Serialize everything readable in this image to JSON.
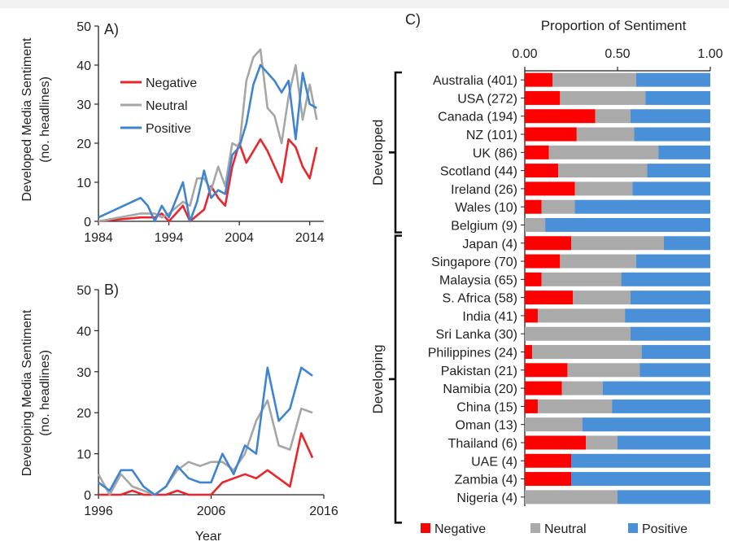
{
  "chart_data": [
    {
      "panel_label": "A)",
      "type": "line",
      "ylabel": [
        "Developed Media Sentiment",
        "(no. headlines)"
      ],
      "xlabel": "",
      "xlim": [
        1984,
        2016
      ],
      "ylim": [
        0,
        50
      ],
      "x_ticks": [
        1984,
        1994,
        2004,
        2014
      ],
      "y_ticks": [
        0,
        10,
        20,
        30,
        40,
        50
      ],
      "legend": "top-left",
      "series": [
        {
          "name": "Negative",
          "color": "#e8262b",
          "points": [
            [
              1984,
              0
            ],
            [
              1990,
              1
            ],
            [
              1992,
              1
            ],
            [
              1993,
              2
            ],
            [
              1994,
              0
            ],
            [
              1996,
              4
            ],
            [
              1997,
              0
            ],
            [
              1999,
              3
            ],
            [
              2000,
              9
            ],
            [
              2001,
              6
            ],
            [
              2002,
              4
            ],
            [
              2003,
              14
            ],
            [
              2004,
              20
            ],
            [
              2005,
              15
            ],
            [
              2007,
              21
            ],
            [
              2008,
              18
            ],
            [
              2010,
              10
            ],
            [
              2011,
              21
            ],
            [
              2012,
              19
            ],
            [
              2013,
              14
            ],
            [
              2014,
              11
            ],
            [
              2015,
              19
            ]
          ]
        },
        {
          "name": "Neutral",
          "color": "#a6a6a6",
          "points": [
            [
              1984,
              0
            ],
            [
              1990,
              2
            ],
            [
              1992,
              2
            ],
            [
              1993,
              1
            ],
            [
              1994,
              2
            ],
            [
              1996,
              5
            ],
            [
              1997,
              4
            ],
            [
              1998,
              11
            ],
            [
              1999,
              11
            ],
            [
              2000,
              8
            ],
            [
              2001,
              14
            ],
            [
              2002,
              9
            ],
            [
              2003,
              20
            ],
            [
              2004,
              19
            ],
            [
              2005,
              36
            ],
            [
              2006,
              42
            ],
            [
              2007,
              44
            ],
            [
              2008,
              29
            ],
            [
              2009,
              27
            ],
            [
              2010,
              20
            ],
            [
              2011,
              32
            ],
            [
              2012,
              40
            ],
            [
              2013,
              26
            ],
            [
              2014,
              35
            ],
            [
              2015,
              26
            ]
          ]
        },
        {
          "name": "Positive",
          "color": "#3f84d1",
          "points": [
            [
              1984,
              1
            ],
            [
              1990,
              6
            ],
            [
              1991,
              4
            ],
            [
              1992,
              0
            ],
            [
              1993,
              4
            ],
            [
              1994,
              1
            ],
            [
              1996,
              10
            ],
            [
              1997,
              0
            ],
            [
              1998,
              5
            ],
            [
              1999,
              13
            ],
            [
              2000,
              6
            ],
            [
              2001,
              8
            ],
            [
              2002,
              7
            ],
            [
              2003,
              17
            ],
            [
              2004,
              19
            ],
            [
              2005,
              25
            ],
            [
              2006,
              35
            ],
            [
              2007,
              40
            ],
            [
              2008,
              38
            ],
            [
              2009,
              36
            ],
            [
              2010,
              33
            ],
            [
              2011,
              36
            ],
            [
              2012,
              21
            ],
            [
              2013,
              38
            ],
            [
              2014,
              30
            ],
            [
              2015,
              29
            ]
          ]
        }
      ]
    },
    {
      "panel_label": "B)",
      "type": "line",
      "ylabel": [
        "Developing Media Sentiment",
        "(no. headlines)"
      ],
      "xlabel": "Year",
      "xlim": [
        1996,
        2016
      ],
      "ylim": [
        0,
        50
      ],
      "x_ticks": [
        1996,
        2006,
        2016
      ],
      "y_ticks": [
        0,
        10,
        20,
        30,
        40,
        50
      ],
      "series": [
        {
          "name": "Negative",
          "color": "#e8262b",
          "points": [
            [
              1996,
              0
            ],
            [
              1997,
              0
            ],
            [
              1998,
              0
            ],
            [
              1999,
              1
            ],
            [
              2000,
              0
            ],
            [
              2001,
              0
            ],
            [
              2002,
              0
            ],
            [
              2003,
              1
            ],
            [
              2004,
              0
            ],
            [
              2005,
              0
            ],
            [
              2006,
              0
            ],
            [
              2007,
              3
            ],
            [
              2008,
              4
            ],
            [
              2009,
              5
            ],
            [
              2010,
              4
            ],
            [
              2011,
              6
            ],
            [
              2012,
              4
            ],
            [
              2013,
              2
            ],
            [
              2014,
              15
            ],
            [
              2015,
              9
            ]
          ]
        },
        {
          "name": "Neutral",
          "color": "#a6a6a6",
          "points": [
            [
              1996,
              5
            ],
            [
              1997,
              0
            ],
            [
              1998,
              5
            ],
            [
              1999,
              2
            ],
            [
              2000,
              1
            ],
            [
              2001,
              0
            ],
            [
              2002,
              2
            ],
            [
              2003,
              6
            ],
            [
              2004,
              8
            ],
            [
              2005,
              7
            ],
            [
              2006,
              8
            ],
            [
              2007,
              8
            ],
            [
              2008,
              6
            ],
            [
              2009,
              10
            ],
            [
              2010,
              18
            ],
            [
              2011,
              23
            ],
            [
              2012,
              12
            ],
            [
              2013,
              11
            ],
            [
              2014,
              21
            ],
            [
              2015,
              20
            ]
          ]
        },
        {
          "name": "Positive",
          "color": "#3f84d1",
          "points": [
            [
              1996,
              3
            ],
            [
              1997,
              1
            ],
            [
              1998,
              6
            ],
            [
              1999,
              6
            ],
            [
              2000,
              2
            ],
            [
              2001,
              0
            ],
            [
              2002,
              2
            ],
            [
              2003,
              7
            ],
            [
              2004,
              4
            ],
            [
              2005,
              3
            ],
            [
              2006,
              3
            ],
            [
              2007,
              10
            ],
            [
              2008,
              5
            ],
            [
              2009,
              12
            ],
            [
              2010,
              10
            ],
            [
              2011,
              31
            ],
            [
              2012,
              18
            ],
            [
              2013,
              21
            ],
            [
              2014,
              31
            ],
            [
              2015,
              29
            ]
          ]
        }
      ]
    },
    {
      "panel_label": "C)",
      "type": "bar",
      "orientation": "horizontal",
      "stacked": true,
      "title": "Proportion of Sentiment",
      "xlim": [
        0,
        1
      ],
      "x_ticks": [
        "0.00",
        "0.50",
        "1.00"
      ],
      "groups": [
        {
          "label": "Developed",
          "from": 0,
          "to": 8
        },
        {
          "label": "Developing",
          "from": 9,
          "to": 24
        }
      ],
      "legend": "bottom",
      "series_names": [
        "Negative",
        "Neutral",
        "Positive"
      ],
      "colors": [
        "#ff0000",
        "#aaaaaa",
        "#4a90d9"
      ],
      "categories": [
        "Australia (401)",
        "USA (272)",
        "Canada (194)",
        "NZ (101)",
        "UK (86)",
        "Scotland (44)",
        "Ireland (26)",
        "Wales (10)",
        "Belgium (9)",
        "Japan (4)",
        "Singapore (70)",
        "Malaysia (65)",
        "S. Africa (58)",
        "India (41)",
        "Sri Lanka (30)",
        "Philippines (24)",
        "Pakistan (21)",
        "Namibia (20)",
        "China (15)",
        "Oman (13)",
        "Thailand (6)",
        "UAE (4)",
        "Zambia (4)",
        "Nigeria (4)"
      ],
      "negative": [
        0.15,
        0.19,
        0.38,
        0.28,
        0.13,
        0.18,
        0.27,
        0.09,
        0.0,
        0.25,
        0.19,
        0.09,
        0.26,
        0.07,
        0.0,
        0.04,
        0.23,
        0.2,
        0.07,
        0.0,
        0.33,
        0.25,
        0.25,
        0.0
      ],
      "neutral": [
        0.45,
        0.46,
        0.19,
        0.31,
        0.59,
        0.48,
        0.31,
        0.18,
        0.11,
        0.5,
        0.41,
        0.43,
        0.31,
        0.47,
        0.57,
        0.59,
        0.39,
        0.22,
        0.4,
        0.31,
        0.17,
        0.0,
        0.0,
        0.5
      ],
      "positive": [
        0.4,
        0.35,
        0.43,
        0.41,
        0.28,
        0.34,
        0.42,
        0.73,
        0.89,
        0.25,
        0.4,
        0.48,
        0.43,
        0.46,
        0.43,
        0.37,
        0.38,
        0.58,
        0.53,
        0.69,
        0.5,
        0.75,
        0.75,
        0.5
      ]
    }
  ]
}
